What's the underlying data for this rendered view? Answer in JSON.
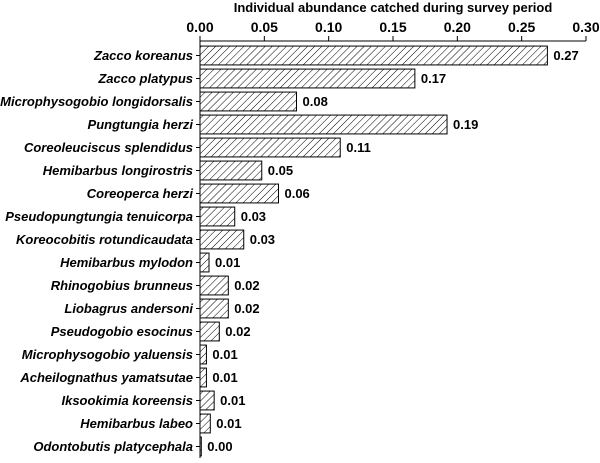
{
  "chart_data": {
    "type": "bar",
    "orientation": "horizontal",
    "xlabel": "Individual abundance catched during survey period",
    "xlim": [
      0,
      0.3
    ],
    "xticks": [
      "0.00",
      "0.05",
      "0.10",
      "0.15",
      "0.20",
      "0.25",
      "0.30"
    ],
    "xaxis_position": "top",
    "grid": false,
    "bar_fill": "diagonal-hatch",
    "categories": [
      "Zacco koreanus",
      "Zacco platypus",
      "Microphysogobio longidorsalis",
      "Pungtungia herzi",
      "Coreoleuciscus splendidus",
      "Hemibarbus longirostris",
      "Coreoperca herzi",
      "Pseudopungtungia tenuicorpa",
      "Koreocobitis rotundicaudata",
      "Hemibarbus mylodon",
      "Rhinogobius brunneus",
      "Liobagrus andersoni",
      "Pseudogobio esocinus",
      "Microphysogobio yaluensis",
      "Acheilognathus yamatsutae",
      "Iksookimia koreensis",
      "Hemibarbus labeo",
      "Odontobutis platycephala"
    ],
    "values": [
      0.27,
      0.167,
      0.075,
      0.192,
      0.109,
      0.048,
      0.061,
      0.027,
      0.034,
      0.007,
      0.022,
      0.022,
      0.015,
      0.005,
      0.005,
      0.011,
      0.008,
      0.001
    ],
    "data_labels": [
      "0.27",
      "0.17",
      "0.08",
      "0.19",
      "0.11",
      "0.05",
      "0.06",
      "0.03",
      "0.03",
      "0.01",
      "0.02",
      "0.02",
      "0.02",
      "0.01",
      "0.01",
      "0.01",
      "0.01",
      "0.00"
    ]
  }
}
